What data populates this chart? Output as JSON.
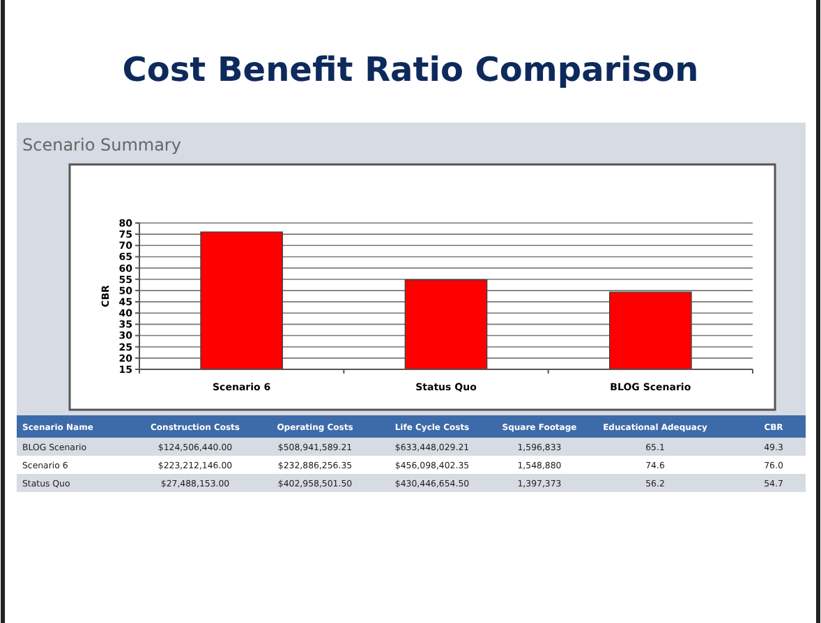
{
  "chart_data": [
    {
      "type": "bar",
      "title": "Cost Benefit Ratio Comparison",
      "subtitle": "Scenario Summary",
      "ylabel": "CBR",
      "categories": [
        "Scenario 6",
        "Status Quo",
        "BLOG Scenario"
      ],
      "values": [
        76.0,
        54.7,
        49.3
      ],
      "color": "#ff0000",
      "ylim": [
        15,
        80
      ],
      "yticks": [
        15,
        20,
        25,
        30,
        35,
        40,
        45,
        50,
        55,
        60,
        65,
        70,
        75,
        80
      ],
      "grid": "y"
    },
    {
      "type": "other",
      "annotations": [
        "Scenario Name",
        "Construction Costs",
        "Operating Costs",
        "Life Cycle Costs",
        "Square Footage",
        "Educational Adequacy",
        "CBR",
        "BLOG Scenario",
        "$124,506,440.00",
        "$508,941,589.21",
        "$633,448,029.21",
        "1,596,833",
        "65.1",
        "49.3",
        "Scenario 6",
        "$223,212,146.00",
        "$232,886,256.35",
        "$456,098,402.35",
        "1,548,880",
        "74.6",
        "76.0",
        "Status Quo",
        "$27,488,153.00",
        "$402,958,501.50",
        "$430,446,654.50",
        "1,397,373",
        "56.2",
        "54.7"
      ]
    }
  ]
}
